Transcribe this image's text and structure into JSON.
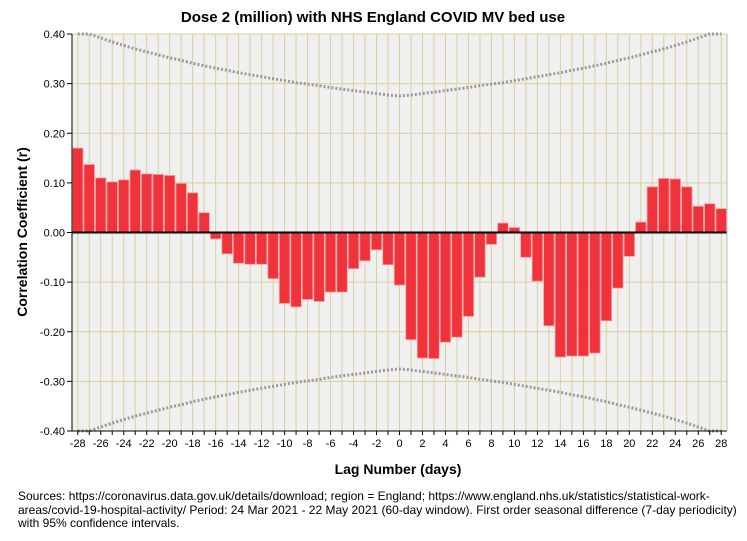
{
  "chart_data": {
    "type": "bar",
    "title": "Dose 2 (million) with NHS England COVID MV bed use",
    "xlabel": "Lag Number (days)",
    "ylabel": "Correlation Coefficient (r)",
    "ylim": [
      -0.4,
      0.4
    ],
    "yticks": [
      "0.40",
      "0.30",
      "0.20",
      "0.10",
      "0.00",
      "-0.10",
      "-0.20",
      "-0.30",
      "-0.40"
    ],
    "ytick_values": [
      0.4,
      0.3,
      0.2,
      0.1,
      0,
      -0.1,
      -0.2,
      -0.3,
      -0.4
    ],
    "x": [
      -28,
      -27,
      -26,
      -25,
      -24,
      -23,
      -22,
      -21,
      -20,
      -19,
      -18,
      -17,
      -16,
      -15,
      -14,
      -13,
      -12,
      -11,
      -10,
      -9,
      -8,
      -7,
      -6,
      -5,
      -4,
      -3,
      -2,
      -1,
      0,
      1,
      2,
      3,
      4,
      5,
      6,
      7,
      8,
      9,
      10,
      11,
      12,
      13,
      14,
      15,
      16,
      17,
      18,
      19,
      20,
      21,
      22,
      23,
      24,
      25,
      26,
      27,
      28
    ],
    "values": [
      0.17,
      0.137,
      0.11,
      0.102,
      0.106,
      0.126,
      0.118,
      0.117,
      0.115,
      0.099,
      0.08,
      0.04,
      -0.013,
      -0.043,
      -0.062,
      -0.064,
      -0.064,
      -0.093,
      -0.143,
      -0.15,
      -0.135,
      -0.139,
      -0.12,
      -0.12,
      -0.073,
      -0.057,
      -0.035,
      -0.065,
      -0.106,
      -0.216,
      -0.253,
      -0.254,
      -0.221,
      -0.211,
      -0.169,
      -0.09,
      -0.024,
      0.019,
      0.01,
      -0.05,
      -0.098,
      -0.188,
      -0.251,
      -0.249,
      -0.249,
      -0.243,
      -0.178,
      -0.112,
      -0.048,
      0.021,
      0.092,
      0.109,
      0.108,
      0.092,
      0.053,
      0.058,
      0.048
    ],
    "confidence_limit_by_abs_lag": [
      0.275,
      0.277,
      0.28,
      0.283,
      0.286,
      0.289,
      0.292,
      0.296,
      0.299,
      0.302,
      0.306,
      0.31,
      0.314,
      0.318,
      0.322,
      0.327,
      0.331,
      0.336,
      0.341,
      0.347,
      0.352,
      0.358,
      0.364,
      0.37,
      0.377,
      0.384,
      0.392,
      0.4,
      0.409
    ],
    "grid": true,
    "bar_color": "#f0323a",
    "grid_color": "#d9d09c",
    "background": "#f0f0f0"
  },
  "sources": "Sources: https://coronavirus.data.gov.uk/details/download; region = England; https://www.england.nhs.uk/statistics/statistical-work-areas/covid-19-hospital-activity/ Period: 24 Mar 2021 - 22 May 2021 (60-day window). First order seasonal difference (7-day periodicity) with 95% confidence intervals."
}
